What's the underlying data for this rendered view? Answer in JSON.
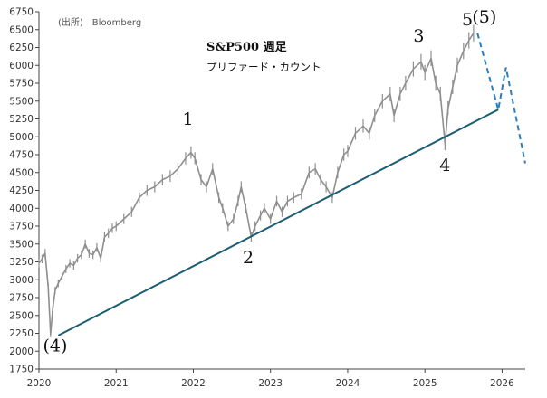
{
  "source": "(出所)　Bloomberg",
  "chart_data": {
    "type": "line",
    "title": "S&P500 週足",
    "subtitle": "プリファード・カウント",
    "xlabel": "",
    "ylabel": "",
    "xlim": [
      2020.0,
      2026.3
    ],
    "ylim": [
      1750,
      6750
    ],
    "x_ticks": [
      "2020",
      "2021",
      "2022",
      "2023",
      "2024",
      "2025",
      "2026"
    ],
    "y_ticks": [
      "1750",
      "2000",
      "2250",
      "2500",
      "2750",
      "3000",
      "3250",
      "3500",
      "3750",
      "4000",
      "4250",
      "4500",
      "4750",
      "5000",
      "5250",
      "5500",
      "5750",
      "6000",
      "6250",
      "6500",
      "6750"
    ],
    "grid": false,
    "colors": {
      "price": "#8f8f8f",
      "trendline": "#1b5e74",
      "projection": "#2c7dbd",
      "axis": "#444444"
    },
    "series": [
      {
        "kind": "price",
        "x": [
          2020.0,
          2020.04,
          2020.08,
          2020.12,
          2020.15,
          2020.18,
          2020.21,
          2020.25,
          2020.3,
          2020.35,
          2020.4,
          2020.45,
          2020.5,
          2020.55,
          2020.6,
          2020.65,
          2020.7,
          2020.75,
          2020.8,
          2020.85,
          2020.9,
          2020.95,
          2021.0,
          2021.1,
          2021.2,
          2021.3,
          2021.4,
          2021.5,
          2021.6,
          2021.7,
          2021.8,
          2021.9,
          2021.97,
          2022.02,
          2022.1,
          2022.17,
          2022.25,
          2022.33,
          2022.38,
          2022.45,
          2022.52,
          2022.58,
          2022.62,
          2022.68,
          2022.75,
          2022.8,
          2022.87,
          2022.92,
          2023.0,
          2023.08,
          2023.15,
          2023.22,
          2023.3,
          2023.4,
          2023.5,
          2023.58,
          2023.65,
          2023.72,
          2023.8,
          2023.87,
          2023.95,
          2024.0,
          2024.1,
          2024.2,
          2024.28,
          2024.35,
          2024.45,
          2024.55,
          2024.6,
          2024.68,
          2024.75,
          2024.85,
          2024.95,
          2025.0,
          2025.08,
          2025.14,
          2025.2,
          2025.26,
          2025.3,
          2025.36,
          2025.42,
          2025.5,
          2025.57,
          2025.63
        ],
        "values": [
          3230,
          3290,
          3370,
          2900,
          2240,
          2600,
          2850,
          2950,
          3050,
          3150,
          3230,
          3200,
          3300,
          3350,
          3500,
          3370,
          3350,
          3450,
          3300,
          3600,
          3650,
          3720,
          3750,
          3850,
          3950,
          4150,
          4250,
          4300,
          4400,
          4450,
          4550,
          4700,
          4780,
          4700,
          4400,
          4300,
          4550,
          4150,
          4000,
          3750,
          3850,
          4100,
          4300,
          4000,
          3600,
          3750,
          3900,
          4000,
          3850,
          4100,
          3950,
          4100,
          4150,
          4200,
          4500,
          4550,
          4400,
          4300,
          4150,
          4500,
          4750,
          4800,
          5050,
          5150,
          5050,
          5300,
          5500,
          5600,
          5300,
          5600,
          5750,
          5950,
          6050,
          5900,
          6100,
          5750,
          5600,
          4900,
          5400,
          5700,
          6000,
          6200,
          6350,
          6450
        ]
      },
      {
        "kind": "trendline",
        "name": "",
        "x": [
          2020.25,
          2025.95
        ],
        "values": [
          2220,
          5380
        ]
      },
      {
        "kind": "projection",
        "name": "",
        "x": [
          2025.68,
          2025.95,
          2026.05,
          2026.3
        ],
        "values": [
          6450,
          5380,
          5970,
          4630
        ]
      }
    ],
    "annotations": [
      {
        "text": "(4)",
        "x": 2020.21,
        "y": 2000
      },
      {
        "text": "1",
        "x": 2021.93,
        "y": 5170
      },
      {
        "text": "2",
        "x": 2022.71,
        "y": 3230
      },
      {
        "text": "3",
        "x": 2024.92,
        "y": 6330
      },
      {
        "text": "4",
        "x": 2025.26,
        "y": 4520
      },
      {
        "text": "5",
        "x": 2025.55,
        "y": 6560
      },
      {
        "text": "(5)",
        "x": 2025.77,
        "y": 6600
      }
    ]
  }
}
